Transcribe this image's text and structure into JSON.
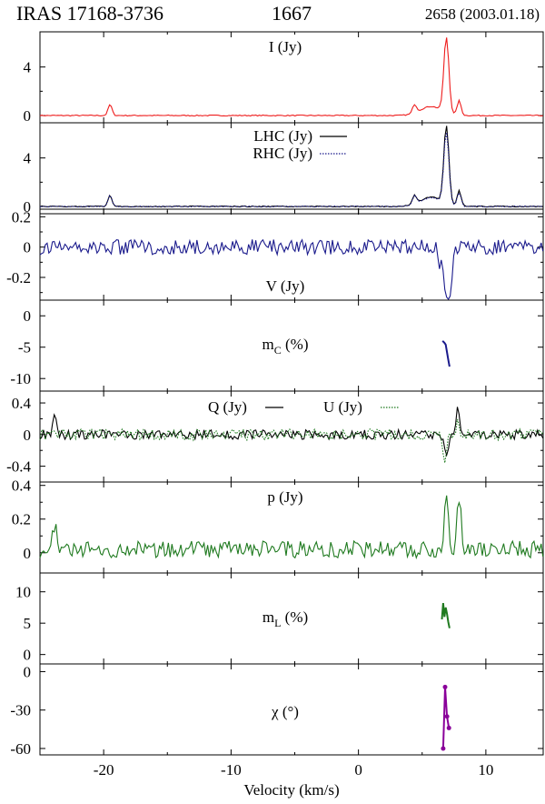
{
  "header": {
    "source": "IRAS 17168-3736",
    "frequency": "1667",
    "epoch": "2658 (2003.01.18)"
  },
  "colors": {
    "stokes_I": "#ee1c1c",
    "stokes_V": "#1a1a8c",
    "linear_p": "#1f7a1f",
    "pa": "#8a009a",
    "frame": "#000000"
  },
  "chart_data": {
    "type": "line",
    "xlabel": "Velocity (km/s)",
    "xlim": [
      -25,
      14.5
    ],
    "xticks": [
      -20,
      -10,
      0,
      10
    ],
    "xtick_labels": [
      "-20",
      "-10",
      "0",
      "10"
    ],
    "panels": [
      {
        "id": "I",
        "label": "I (Jy)",
        "ylim": [
          -0.6,
          6.9
        ],
        "yticks": [
          0,
          2,
          4
        ],
        "ytick_labels": [
          "0",
          "",
          "4"
        ],
        "series": [
          {
            "values_desc": "I",
            "color": "#ee1c1c",
            "style": "solid",
            "features": [
              {
                "v": -19.5,
                "peak": 0.9
              },
              {
                "v": 6.9,
                "peak": 6.2
              },
              {
                "v": 7.9,
                "peak": 1.2
              },
              {
                "v": 4.4,
                "peak": 0.7
              }
            ]
          }
        ]
      },
      {
        "id": "LR",
        "label": "",
        "ylim": [
          -0.6,
          6.9
        ],
        "yticks": [
          0,
          2,
          4
        ],
        "ytick_labels": [
          "0",
          "",
          "4"
        ],
        "legend": [
          "LHC (Jy)",
          "RHC (Jy)"
        ],
        "series": [
          {
            "name": "LHC (Jy)",
            "color": "#000000",
            "style": "solid",
            "features": [
              {
                "v": -19.5,
                "peak": 0.9
              },
              {
                "v": 6.9,
                "peak": 6.4
              },
              {
                "v": 7.9,
                "peak": 1.3
              },
              {
                "v": 4.4,
                "peak": 0.7
              }
            ]
          },
          {
            "name": "RHC (Jy)",
            "color": "#1a1a8c",
            "style": "dotted",
            "features": [
              {
                "v": -19.5,
                "peak": 0.9
              },
              {
                "v": 6.9,
                "peak": 5.9
              },
              {
                "v": 7.9,
                "peak": 1.1
              },
              {
                "v": 4.4,
                "peak": 0.7
              }
            ]
          }
        ]
      },
      {
        "id": "V",
        "label": "V (Jy)",
        "ylim": [
          -0.35,
          0.25
        ],
        "yticks": [
          -0.3,
          -0.2,
          -0.1,
          0,
          0.1,
          0.2
        ],
        "ytick_labels": [
          "",
          "-0.2",
          "",
          "0",
          "",
          "0.2"
        ],
        "series": [
          {
            "color": "#1a1a8c",
            "style": "solid",
            "noise": 0.05,
            "features": [
              {
                "v": 6.4,
                "peak": -0.12
              },
              {
                "v": 6.9,
                "peak": -0.3
              },
              {
                "v": 7.2,
                "peak": -0.3
              }
            ]
          }
        ]
      },
      {
        "id": "mC",
        "label": "m",
        "label_sub": "C",
        "label_unit": " (%)",
        "ylim": [
          -12,
          2.5
        ],
        "yticks": [
          -10,
          -5,
          0
        ],
        "ytick_labels": [
          "-10",
          "-5",
          "0"
        ],
        "segment": {
          "color": "#1a1a8c",
          "points": [
            [
              6.6,
              -4.0
            ],
            [
              6.75,
              -4.3
            ],
            [
              6.85,
              -4.6
            ],
            [
              6.95,
              -5.8
            ],
            [
              7.05,
              -7.0
            ],
            [
              7.15,
              -8.1
            ]
          ]
        }
      },
      {
        "id": "QU",
        "label": "",
        "ylim": [
          -0.6,
          0.55
        ],
        "yticks": [
          -0.4,
          -0.2,
          0,
          0.2,
          0.4
        ],
        "ytick_labels": [
          "-0.4",
          "",
          "0",
          "",
          "0.4"
        ],
        "legend": [
          "Q (Jy)",
          "U (Jy)"
        ],
        "series": [
          {
            "name": "Q (Jy)",
            "color": "#000000",
            "style": "solid",
            "noise": 0.06,
            "features": [
              {
                "v": -23.8,
                "peak": 0.22
              },
              {
                "v": 6.9,
                "peak": -0.22
              },
              {
                "v": 7.8,
                "peak": 0.3
              }
            ]
          },
          {
            "name": "U (Jy)",
            "color": "#1f7a1f",
            "style": "dotted",
            "noise": 0.07,
            "features": [
              {
                "v": 6.8,
                "peak": -0.32
              },
              {
                "v": 7.8,
                "peak": 0.15
              }
            ]
          }
        ]
      },
      {
        "id": "p",
        "label": "p (Jy)",
        "ylim": [
          -0.12,
          0.42
        ],
        "yticks": [
          0,
          0.1,
          0.2,
          0.3,
          0.4
        ],
        "ytick_labels": [
          "0",
          "",
          "0.2",
          "",
          "0.4"
        ],
        "series": [
          {
            "color": "#1f7a1f",
            "style": "solid",
            "noise": 0.05,
            "baseline": 0.02,
            "features": [
              {
                "v": -23.8,
                "peak": 0.17
              },
              {
                "v": 6.9,
                "peak": 0.34
              },
              {
                "v": 7.9,
                "peak": 0.3
              }
            ]
          }
        ]
      },
      {
        "id": "mL",
        "label": "m",
        "label_sub": "L",
        "label_unit": " (%)",
        "ylim": [
          -1.5,
          13
        ],
        "yticks": [
          0,
          5,
          10
        ],
        "ytick_labels": [
          "0",
          "5",
          "10"
        ],
        "segment": {
          "color": "#1f7a1f",
          "points": [
            [
              6.55,
              5.6
            ],
            [
              6.65,
              8.2
            ],
            [
              6.75,
              6.0
            ],
            [
              6.85,
              7.5
            ],
            [
              6.95,
              6.5
            ],
            [
              7.05,
              5.2
            ],
            [
              7.15,
              4.2
            ]
          ]
        }
      },
      {
        "id": "chi",
        "label": "χ (°)",
        "ylim": [
          -65,
          6
        ],
        "yticks": [
          -60,
          -30,
          0
        ],
        "ytick_labels": [
          "-60",
          "-30",
          "0"
        ],
        "segment": {
          "color": "#8a009a",
          "marker": true,
          "points": [
            [
              6.65,
              -60
            ],
            [
              6.8,
              -12
            ],
            [
              6.95,
              -35
            ],
            [
              7.1,
              -44
            ]
          ]
        }
      }
    ]
  }
}
